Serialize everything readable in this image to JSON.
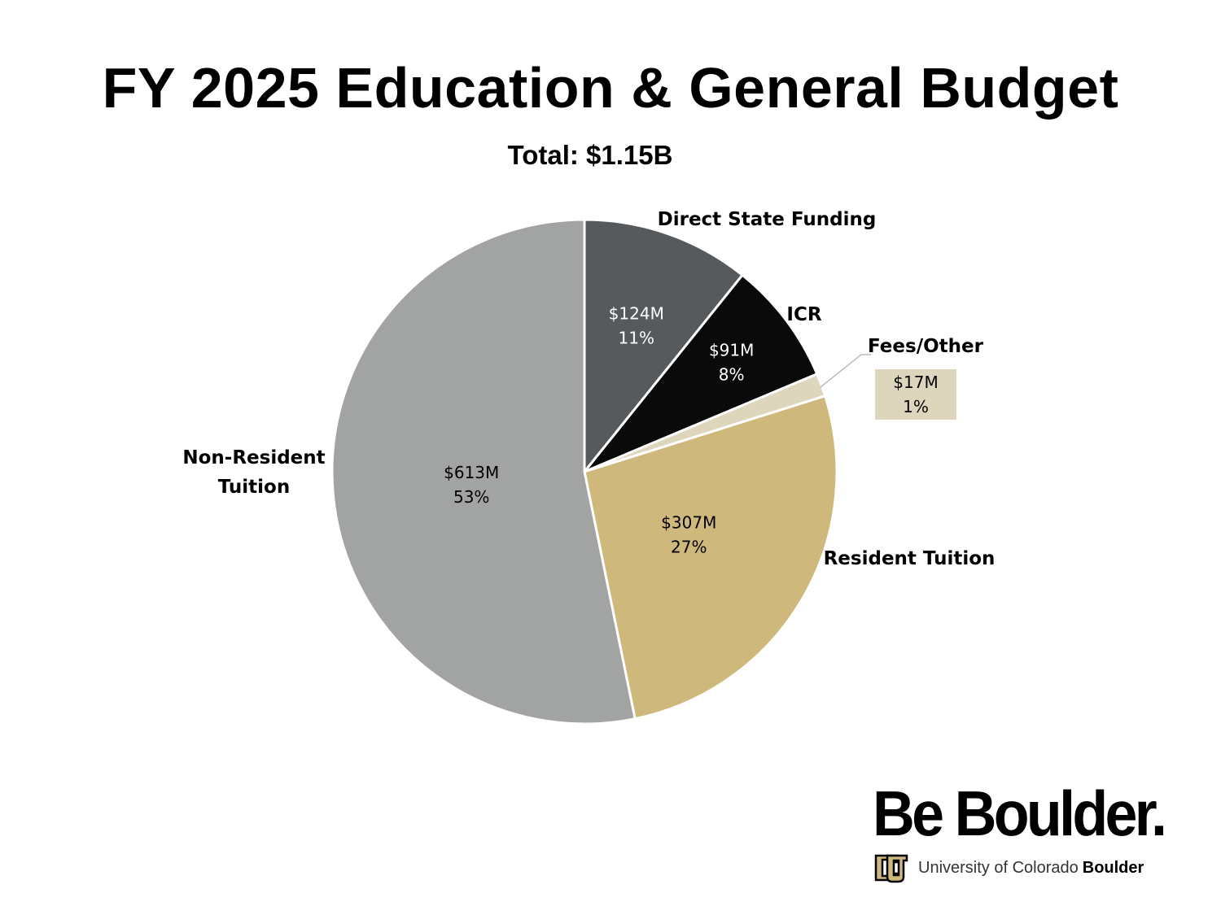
{
  "chart_data": {
    "type": "pie",
    "title": "FY 2025 Education & General Budget",
    "subtitle": "Total:  $1.15B",
    "start_angle_deg": 0,
    "direction": "clockwise",
    "slices": [
      {
        "name": "Direct State Funding",
        "value_label": "$124M",
        "percent_label": "11%",
        "value": 124,
        "color": "#565a5c",
        "text_color": "#ffffff"
      },
      {
        "name": "ICR",
        "value_label": "$91M",
        "percent_label": "8%",
        "value": 91,
        "color": "#0a0a0a",
        "text_color": "#ffffff"
      },
      {
        "name": "Fees/Other",
        "value_label": "$17M",
        "percent_label": "1%",
        "value": 17,
        "color": "#ddd6bd",
        "text_color": "#000000"
      },
      {
        "name": "Resident Tuition",
        "value_label": "$307M",
        "percent_label": "27%",
        "value": 307,
        "color": "#cfb87c",
        "text_color": "#000000"
      },
      {
        "name": "Non-Resident Tuition",
        "name_lines": [
          "Non-Resident",
          "Tuition"
        ],
        "value_label": "$613M",
        "percent_label": "53%",
        "value": 613,
        "color": "#a2a4a3",
        "text_color": "#000000"
      }
    ]
  },
  "branding": {
    "tagline": "Be Boulder.",
    "university_prefix": "University of Colorado",
    "university_bold": "Boulder"
  },
  "colors": {
    "accent_gold": "#cfb87c",
    "dark_gray": "#565a5c",
    "light_gray": "#a2a4a3",
    "black": "#0a0a0a"
  }
}
